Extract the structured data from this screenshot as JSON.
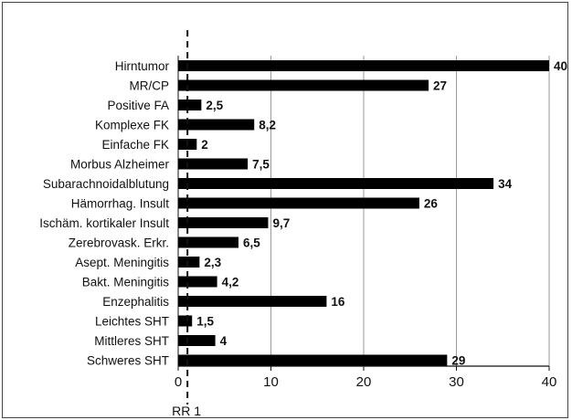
{
  "chart_data": {
    "type": "bar",
    "orientation": "horizontal",
    "title": "",
    "xlabel": "",
    "ylabel": "",
    "categories": [
      "Hirntumor",
      "MR/CP",
      "Positive FA",
      "Komplexe FK",
      "Einfache FK",
      "Morbus Alzheimer",
      "Subarachnoidalblutung",
      "Hämorrhag. Insult",
      "Ischäm. kortikaler Insult",
      "Zerebrovask. Erkr.",
      "Asept. Meningitis",
      "Bakt. Meningitis",
      "Enzephalitis",
      "Leichtes SHT",
      "Mittleres SHT",
      "Schweres SHT"
    ],
    "values": [
      40,
      27,
      2.5,
      8.2,
      2,
      7.5,
      34,
      26,
      9.7,
      6.5,
      2.3,
      4.2,
      16,
      1.5,
      4,
      29
    ],
    "value_labels": [
      "40",
      "27",
      "2,5",
      "8,2",
      "2",
      "7,5",
      "34",
      "26",
      "9,7",
      "6,5",
      "2,3",
      "4,2",
      "16",
      "1,5",
      "4",
      "29"
    ],
    "xlim": [
      0,
      40
    ],
    "xticks": [
      0,
      10,
      20,
      30,
      40
    ],
    "grid": "vertical",
    "bar_color": "#000000",
    "reference_line": {
      "value": 1,
      "label": "RR 1",
      "style": "dashed"
    }
  }
}
